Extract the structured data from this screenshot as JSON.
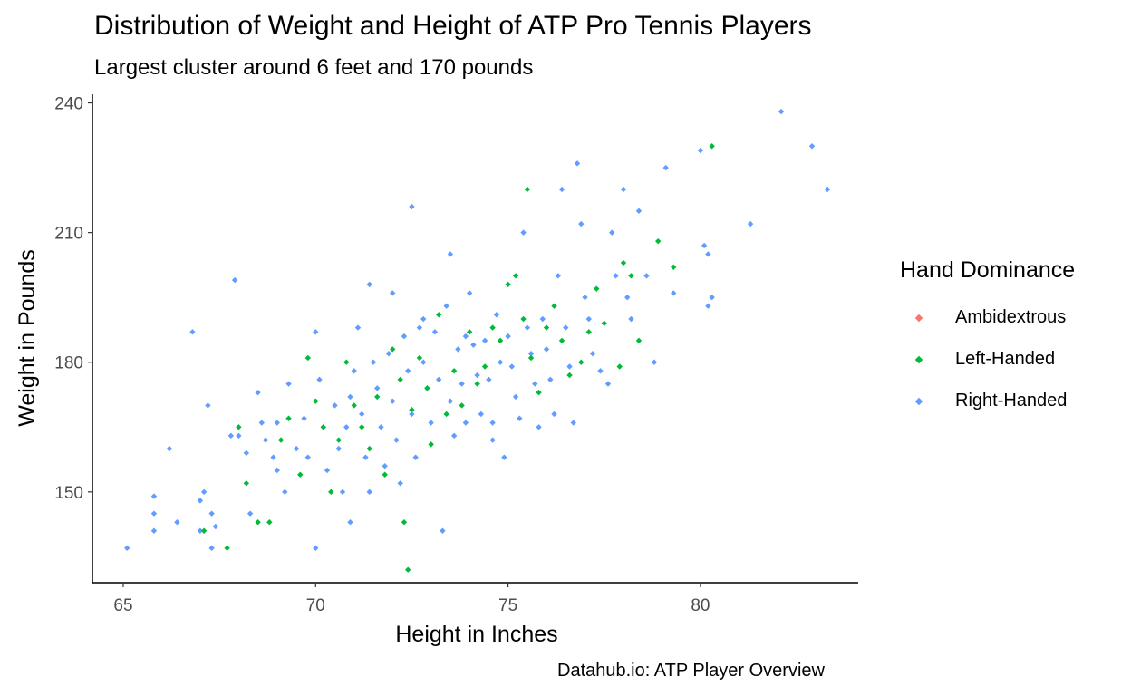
{
  "chart_data": {
    "type": "scatter",
    "title": "Distribution of Weight and Height of ATP Pro Tennis Players",
    "subtitle": "Largest cluster around 6 feet and 170 pounds",
    "caption": "Datahub.io: ATP Player Overview",
    "xlabel": "Height in Inches",
    "ylabel": "Weight in Pounds",
    "xlim": [
      64.2,
      84.1
    ],
    "ylim": [
      129,
      242
    ],
    "xticks": [
      65,
      70,
      75,
      80
    ],
    "yticks": [
      150,
      180,
      210,
      240
    ],
    "grid": false,
    "legend": {
      "title": "Hand Dominance",
      "placement": "right",
      "entries": [
        "Ambidextrous",
        "Left-Handed",
        "Right-Handed"
      ]
    },
    "colors": {
      "Ambidextrous": "#f8766d",
      "Left-Handed": "#00ba38",
      "Right-Handed": "#619cff"
    },
    "series": [
      {
        "name": "Ambidextrous",
        "points": []
      },
      {
        "name": "Left-Handed",
        "points": [
          [
            67.1,
            141
          ],
          [
            67.7,
            137
          ],
          [
            68.0,
            165
          ],
          [
            68.2,
            152
          ],
          [
            68.5,
            143
          ],
          [
            68.8,
            143
          ],
          [
            69.1,
            162
          ],
          [
            69.3,
            167
          ],
          [
            69.6,
            154
          ],
          [
            69.8,
            181
          ],
          [
            70.0,
            171
          ],
          [
            70.2,
            165
          ],
          [
            70.4,
            150
          ],
          [
            70.6,
            162
          ],
          [
            70.8,
            180
          ],
          [
            71.0,
            170
          ],
          [
            71.2,
            165
          ],
          [
            71.4,
            160
          ],
          [
            71.6,
            172
          ],
          [
            71.8,
            154
          ],
          [
            72.0,
            183
          ],
          [
            72.2,
            176
          ],
          [
            72.3,
            143
          ],
          [
            72.4,
            132
          ],
          [
            72.5,
            169
          ],
          [
            72.7,
            181
          ],
          [
            72.9,
            174
          ],
          [
            73.0,
            161
          ],
          [
            73.2,
            191
          ],
          [
            73.4,
            168
          ],
          [
            73.6,
            178
          ],
          [
            73.8,
            170
          ],
          [
            74.0,
            187
          ],
          [
            74.2,
            175
          ],
          [
            74.4,
            179
          ],
          [
            74.6,
            188
          ],
          [
            74.8,
            185
          ],
          [
            75.0,
            198
          ],
          [
            75.2,
            200
          ],
          [
            75.4,
            190
          ],
          [
            75.6,
            181
          ],
          [
            75.8,
            173
          ],
          [
            76.0,
            188
          ],
          [
            76.2,
            193
          ],
          [
            76.4,
            185
          ],
          [
            76.6,
            177
          ],
          [
            76.9,
            180
          ],
          [
            77.1,
            187
          ],
          [
            77.3,
            197
          ],
          [
            77.5,
            189
          ],
          [
            77.9,
            179
          ],
          [
            78.0,
            203
          ],
          [
            78.2,
            200
          ],
          [
            78.4,
            185
          ],
          [
            78.9,
            208
          ],
          [
            79.3,
            202
          ],
          [
            80.3,
            230
          ],
          [
            75.5,
            220
          ]
        ]
      },
      {
        "name": "Right-Handed",
        "points": [
          [
            65.1,
            137
          ],
          [
            65.8,
            149
          ],
          [
            65.8,
            145
          ],
          [
            65.8,
            141
          ],
          [
            66.2,
            160
          ],
          [
            66.4,
            143
          ],
          [
            66.8,
            187
          ],
          [
            67.0,
            141
          ],
          [
            67.0,
            148
          ],
          [
            67.1,
            150
          ],
          [
            67.2,
            170
          ],
          [
            67.3,
            145
          ],
          [
            67.3,
            137
          ],
          [
            67.4,
            142
          ],
          [
            67.8,
            163
          ],
          [
            67.9,
            199
          ],
          [
            68.0,
            163
          ],
          [
            68.2,
            159
          ],
          [
            68.3,
            145
          ],
          [
            68.5,
            173
          ],
          [
            68.6,
            166
          ],
          [
            68.7,
            162
          ],
          [
            68.9,
            158
          ],
          [
            69.0,
            155
          ],
          [
            69.2,
            150
          ],
          [
            69.3,
            175
          ],
          [
            69.5,
            160
          ],
          [
            69.7,
            167
          ],
          [
            69.8,
            158
          ],
          [
            70.0,
            137
          ],
          [
            70.0,
            187
          ],
          [
            70.1,
            176
          ],
          [
            70.2,
            165
          ],
          [
            70.3,
            155
          ],
          [
            70.5,
            170
          ],
          [
            70.6,
            160
          ],
          [
            70.7,
            150
          ],
          [
            70.8,
            165
          ],
          [
            70.9,
            143
          ],
          [
            71.0,
            178
          ],
          [
            71.1,
            188
          ],
          [
            71.2,
            168
          ],
          [
            71.3,
            158
          ],
          [
            71.4,
            150
          ],
          [
            71.5,
            180
          ],
          [
            71.6,
            174
          ],
          [
            71.7,
            165
          ],
          [
            71.8,
            156
          ],
          [
            71.9,
            182
          ],
          [
            72.0,
            196
          ],
          [
            72.0,
            171
          ],
          [
            72.1,
            162
          ],
          [
            72.2,
            152
          ],
          [
            72.3,
            186
          ],
          [
            72.4,
            178
          ],
          [
            72.5,
            168
          ],
          [
            72.6,
            158
          ],
          [
            72.7,
            188
          ],
          [
            72.8,
            180
          ],
          [
            72.9,
            174
          ],
          [
            73.0,
            166
          ],
          [
            73.1,
            187
          ],
          [
            73.2,
            176
          ],
          [
            73.3,
            141
          ],
          [
            73.4,
            193
          ],
          [
            73.5,
            171
          ],
          [
            73.6,
            163
          ],
          [
            73.7,
            183
          ],
          [
            73.8,
            175
          ],
          [
            73.9,
            166
          ],
          [
            74.0,
            196
          ],
          [
            74.1,
            184
          ],
          [
            74.2,
            177
          ],
          [
            74.3,
            168
          ],
          [
            74.4,
            185
          ],
          [
            74.5,
            176
          ],
          [
            74.6,
            166
          ],
          [
            74.7,
            191
          ],
          [
            74.8,
            180
          ],
          [
            74.9,
            158
          ],
          [
            75.0,
            186
          ],
          [
            75.1,
            179
          ],
          [
            75.2,
            172
          ],
          [
            75.3,
            167
          ],
          [
            75.4,
            210
          ],
          [
            75.5,
            188
          ],
          [
            75.6,
            182
          ],
          [
            75.7,
            175
          ],
          [
            75.8,
            165
          ],
          [
            75.9,
            190
          ],
          [
            76.0,
            183
          ],
          [
            76.1,
            176
          ],
          [
            76.2,
            168
          ],
          [
            76.3,
            200
          ],
          [
            76.4,
            220
          ],
          [
            76.5,
            188
          ],
          [
            76.6,
            179
          ],
          [
            76.7,
            166
          ],
          [
            76.8,
            226
          ],
          [
            76.9,
            212
          ],
          [
            77.0,
            195
          ],
          [
            77.1,
            190
          ],
          [
            77.2,
            182
          ],
          [
            77.4,
            178
          ],
          [
            77.6,
            175
          ],
          [
            77.7,
            210
          ],
          [
            77.8,
            200
          ],
          [
            78.0,
            220
          ],
          [
            78.1,
            195
          ],
          [
            78.2,
            190
          ],
          [
            78.4,
            215
          ],
          [
            78.6,
            200
          ],
          [
            78.8,
            180
          ],
          [
            79.1,
            225
          ],
          [
            79.3,
            196
          ],
          [
            80.0,
            229
          ],
          [
            80.1,
            207
          ],
          [
            80.2,
            205
          ],
          [
            80.2,
            193
          ],
          [
            80.3,
            195
          ],
          [
            81.3,
            212
          ],
          [
            82.1,
            238
          ],
          [
            82.9,
            230
          ],
          [
            83.3,
            220
          ],
          [
            72.5,
            216
          ],
          [
            73.5,
            205
          ],
          [
            72.8,
            190
          ],
          [
            71.4,
            198
          ],
          [
            69.0,
            166
          ],
          [
            70.9,
            172
          ],
          [
            73.9,
            186
          ],
          [
            74.6,
            162
          ]
        ]
      }
    ]
  }
}
